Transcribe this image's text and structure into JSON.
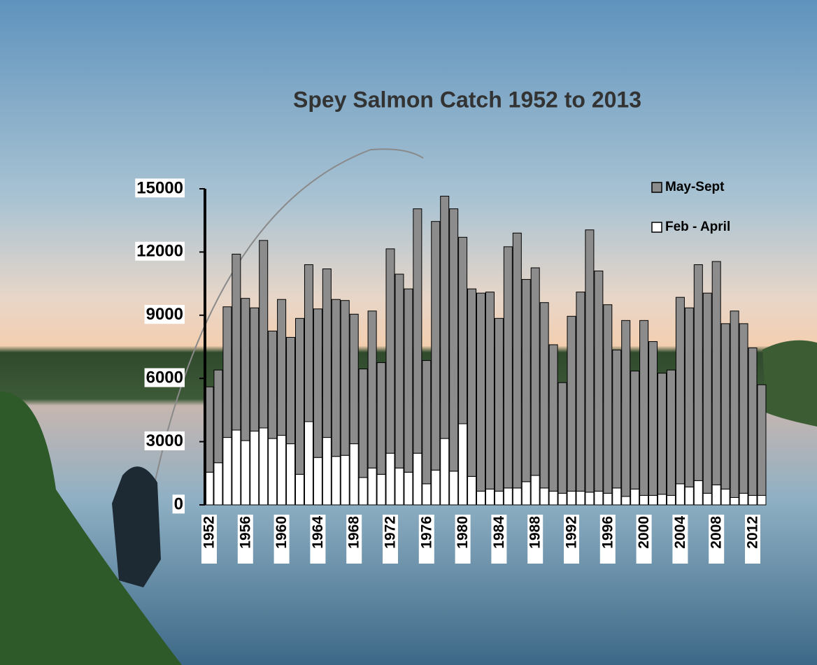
{
  "chart_data": {
    "type": "stacked-bar",
    "title": "Spey Salmon Catch 1952 to 2013",
    "categories": [
      "1952",
      null,
      null,
      null,
      "1956",
      null,
      null,
      null,
      "1960",
      null,
      null,
      null,
      "1964",
      null,
      null,
      null,
      "1968",
      null,
      null,
      null,
      "1972",
      null,
      null,
      null,
      "1976",
      null,
      null,
      null,
      "1980",
      null,
      null,
      null,
      "1984",
      null,
      null,
      null,
      "1988",
      null,
      null,
      null,
      "1992",
      null,
      null,
      null,
      "1996",
      null,
      null,
      null,
      "2000",
      null,
      null,
      null,
      "2004",
      null,
      null,
      null,
      "2008",
      null,
      null,
      null,
      "2012",
      null
    ],
    "series": [
      {
        "name": "May-Sept",
        "color": "#8c8c8c",
        "values": [
          4050,
          4400,
          6200,
          8350,
          6750,
          5850,
          8900,
          5100,
          6450,
          5050,
          7400,
          7450,
          7050,
          8000,
          7450,
          7350,
          6150,
          5150,
          7450,
          5300,
          9700,
          9200,
          8700,
          11600,
          5850,
          11800,
          11500,
          12450,
          8850,
          8900,
          9400,
          9350,
          8200,
          11450,
          12100,
          9600,
          9850,
          8800,
          6950,
          5250,
          8300,
          9450,
          12450,
          10450,
          8950,
          6550,
          8350,
          5600,
          8300,
          7300,
          5750,
          5950,
          8850,
          8500,
          10250,
          9500,
          10600,
          7850,
          8850,
          8050,
          7000,
          5250
        ]
      },
      {
        "name": "Feb - April",
        "color": "#ffffff",
        "values": [
          1550,
          2000,
          3200,
          3550,
          3050,
          3500,
          3650,
          3150,
          3300,
          2900,
          1450,
          3950,
          2250,
          3200,
          2300,
          2350,
          2900,
          1300,
          1750,
          1450,
          2450,
          1750,
          1550,
          2450,
          1000,
          1650,
          3150,
          1600,
          3850,
          1350,
          650,
          750,
          650,
          800,
          800,
          1100,
          1400,
          800,
          650,
          550,
          650,
          650,
          600,
          650,
          550,
          800,
          400,
          750,
          450,
          450,
          500,
          450,
          1000,
          850,
          1150,
          550,
          950,
          750,
          350,
          550,
          450,
          450
        ]
      }
    ],
    "ylim": [
      0,
      15000
    ],
    "yticks": [
      0,
      3000,
      6000,
      9000,
      12000,
      15000
    ],
    "grid": false,
    "legend": "top-right"
  }
}
